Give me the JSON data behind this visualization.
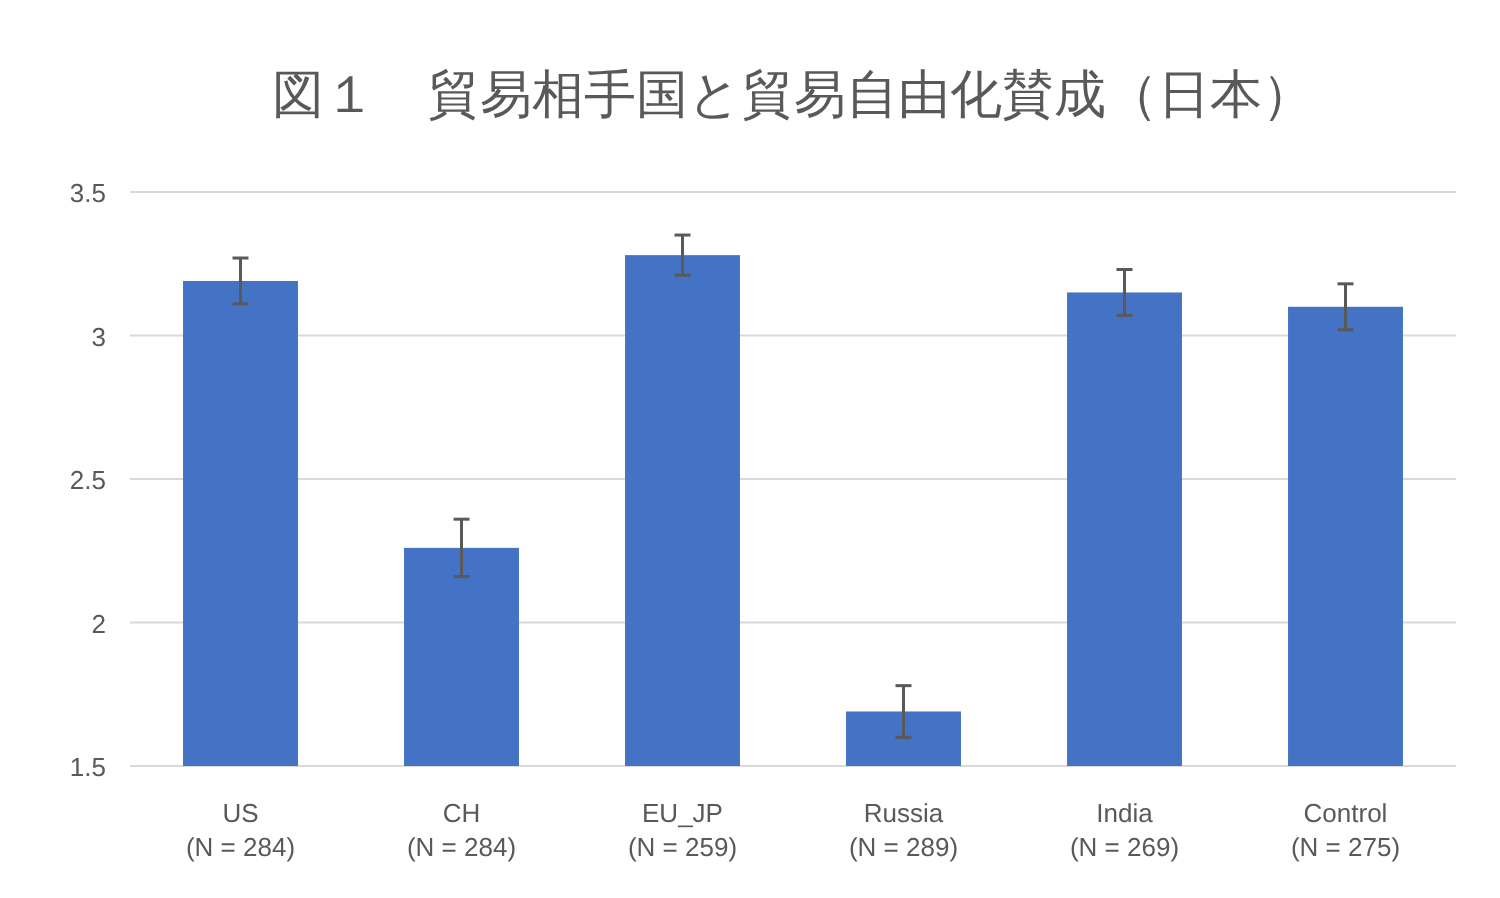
{
  "chart_data": {
    "type": "bar",
    "title": "図１　貿易相手国と貿易自由化賛成（日本）",
    "categories": [
      "US\n(N = 284)",
      "CH\n(N = 284)",
      "EU_JP\n(N = 259)",
      "Russia\n(N = 289)",
      "India\n(N = 269)",
      "Control\n(N = 275)"
    ],
    "values": [
      3.19,
      2.26,
      3.28,
      1.69,
      3.15,
      3.1
    ],
    "errors": [
      0.08,
      0.1,
      0.07,
      0.09,
      0.08,
      0.08
    ],
    "color": "#4472c4",
    "ylim": [
      1.5,
      3.5
    ],
    "yticks": [
      {
        "value": 1.5,
        "label": "1.5"
      },
      2,
      {
        "value": 2.5,
        "label": "2.5"
      },
      3,
      {
        "value": 3.5,
        "label": "3.5"
      }
    ],
    "grid": "y"
  }
}
